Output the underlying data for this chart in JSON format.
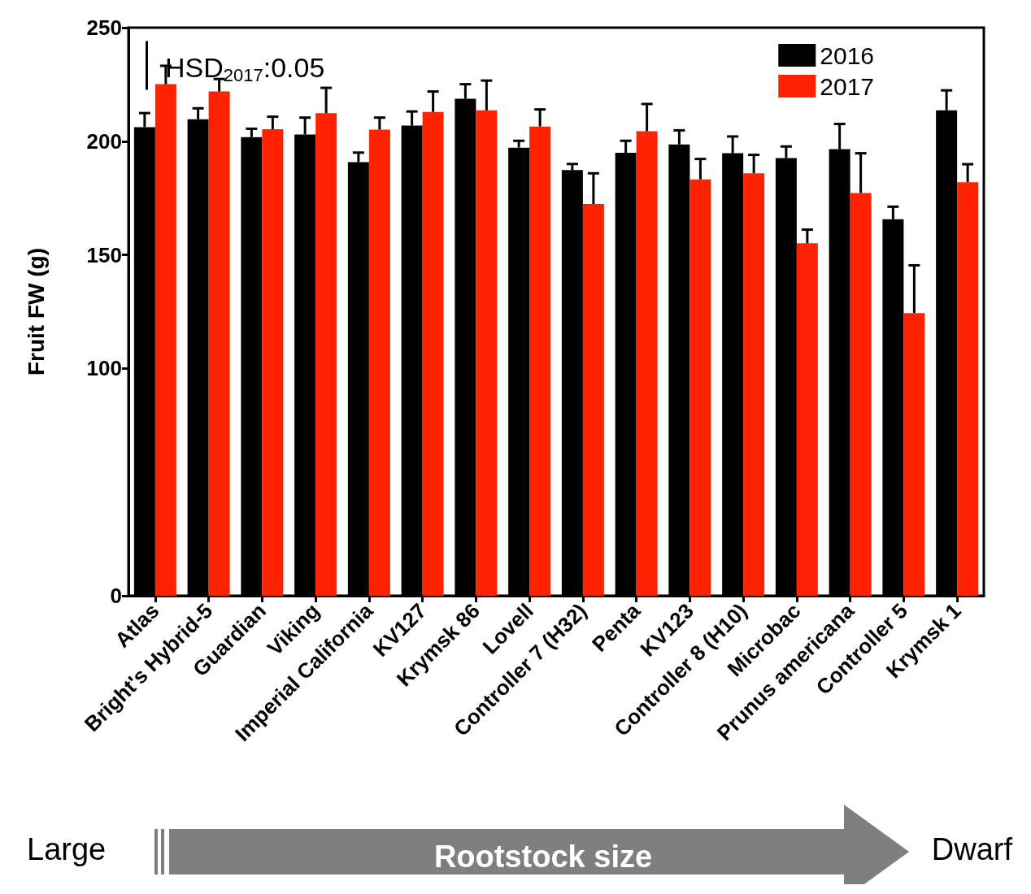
{
  "chart_data": {
    "type": "bar",
    "ylabel": "Fruit FW (g)",
    "categories": [
      "Atlas",
      "Bright's Hybrid-5",
      "Guardian",
      "Viking",
      "Imperial California",
      "KV127",
      "Krymsk 86",
      "Lovell",
      "Controller 7 (H32)",
      "Penta",
      "KV123",
      "Controller 8 (H10)",
      "Microbac",
      "Prunus americana",
      "Controller 5",
      "Krymsk 1"
    ],
    "series": [
      {
        "name": "2016",
        "color": "#000000",
        "values": [
          206.2,
          209.7,
          201.8,
          203,
          190.8,
          206.9,
          218.7,
          197.2,
          187.3,
          194.9,
          198.6,
          194.7,
          192.6,
          196.5,
          165.7,
          213.6
        ],
        "errors": [
          [
            206.2,
            212.4
          ],
          [
            209.7,
            214.5
          ],
          [
            201.8,
            205.5
          ],
          [
            203,
            210.4
          ],
          [
            190.8,
            195
          ],
          [
            206.9,
            213.1
          ],
          [
            218.7,
            225.1
          ],
          [
            197.2,
            200.2
          ],
          [
            187.3,
            190
          ],
          [
            194.9,
            200.2
          ],
          [
            198.6,
            204.8
          ],
          [
            194.7,
            202.1
          ],
          [
            192.6,
            197.7
          ],
          [
            196.5,
            207.6
          ],
          [
            165.7,
            171.2
          ],
          [
            213.6,
            222.4
          ]
        ]
      },
      {
        "name": "2017",
        "color": "#ff2200",
        "values": [
          225.1,
          221.9,
          205.3,
          212.4,
          205.1,
          212.9,
          213.6,
          206.5,
          172.4,
          204.4,
          183.2,
          185.9,
          155.1,
          177.2,
          124.4,
          182
        ],
        "errors": [
          [
            225.1,
            233.2
          ],
          [
            221.9,
            227.4
          ],
          [
            205.3,
            210.8
          ],
          [
            212.4,
            223.5
          ],
          [
            205.1,
            210.4
          ],
          [
            212.9,
            221.9
          ],
          [
            213.6,
            226.7
          ],
          [
            206.5,
            214
          ],
          [
            172.4,
            185.9
          ],
          [
            204.4,
            216.4
          ],
          [
            183.2,
            192.2
          ],
          [
            185.9,
            194
          ],
          [
            155.1,
            161.1
          ],
          [
            177.2,
            194.7
          ],
          [
            124.4,
            145.4
          ],
          [
            182,
            189.9
          ]
        ]
      }
    ],
    "ylim": [
      0,
      250
    ],
    "yticks": [
      0,
      100,
      150,
      200,
      250
    ],
    "grid": false,
    "legend": "top right",
    "annotations": [
      "HSD$_{2017}$:0.05",
      "Large",
      "Rootstock size",
      "Dwarf"
    ]
  }
}
